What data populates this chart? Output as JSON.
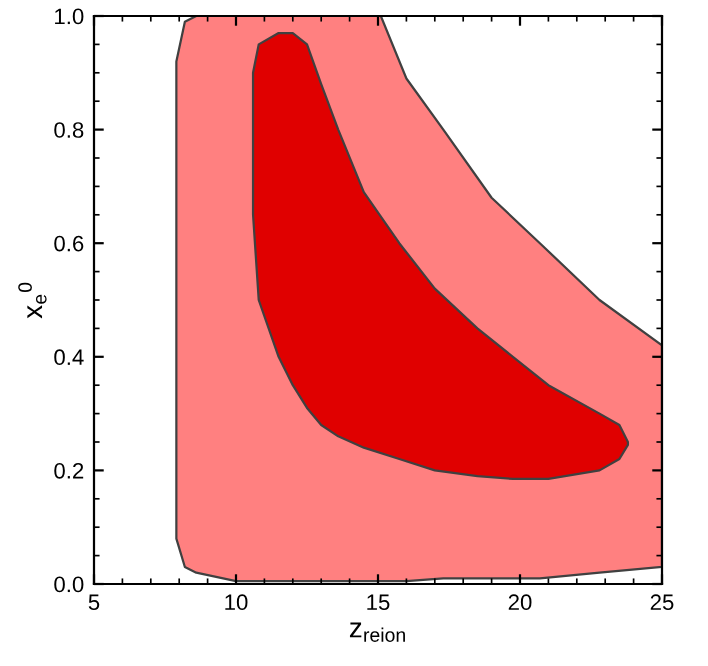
{
  "chart_data": {
    "type": "area",
    "xlabel": "z$_{reion}$",
    "ylabel": "x$_{e}$$^{0}$",
    "xlim": [
      5,
      25
    ],
    "ylim": [
      0.0,
      1.0
    ],
    "xticks": [
      5,
      10,
      15,
      20,
      25
    ],
    "yticks": [
      {
        "value": 0.0,
        "label": "0.0"
      },
      {
        "value": 0.2,
        "label": "0.2"
      },
      {
        "value": 0.4,
        "label": "0.4"
      },
      {
        "value": 0.6,
        "label": "0.6"
      },
      {
        "value": 0.8,
        "label": "0.8"
      },
      {
        "value": 1.0,
        "label": "1.0"
      }
    ],
    "grid": false,
    "legend": false,
    "marker": "none",
    "series": [
      {
        "color": "#ff8080",
        "x": [
          7.9,
          8.2,
          8.6,
          10,
          12,
          15.1,
          16,
          17.3,
          19,
          20.7,
          22.8,
          25,
          25,
          22.8,
          20.7,
          19,
          17.3,
          16,
          15.1,
          12,
          10,
          8.6,
          8.2,
          7.9,
          7.9
        ],
        "values": [
          0.08,
          0.03,
          0.02,
          0.005,
          0.005,
          0.005,
          0.005,
          0.01,
          0.01,
          0.01,
          0.02,
          0.03,
          0.42,
          0.5,
          0.6,
          0.68,
          0.8,
          0.89,
          1.0,
          1.0,
          1.0,
          1.0,
          0.99,
          0.92,
          0.08
        ]
      },
      {
        "color": "#e00000",
        "x": [
          10.6,
          10.8,
          11.5,
          12,
          12.5,
          13,
          13.6,
          14.5,
          15.75,
          17,
          18.5,
          19.75,
          21,
          22.8,
          23.5,
          23.8,
          23.8,
          23.5,
          22.8,
          21,
          19.75,
          18.5,
          17,
          15.75,
          14.5,
          13.6,
          13,
          12.5,
          12,
          11.5,
          10.8,
          10.6,
          10.6
        ],
        "values": [
          0.65,
          0.5,
          0.4,
          0.35,
          0.31,
          0.28,
          0.26,
          0.24,
          0.22,
          0.2,
          0.19,
          0.185,
          0.185,
          0.2,
          0.22,
          0.245,
          0.25,
          0.28,
          0.3,
          0.35,
          0.4,
          0.45,
          0.52,
          0.6,
          0.69,
          0.8,
          0.88,
          0.95,
          0.97,
          0.97,
          0.95,
          0.9,
          0.65
        ]
      }
    ]
  }
}
